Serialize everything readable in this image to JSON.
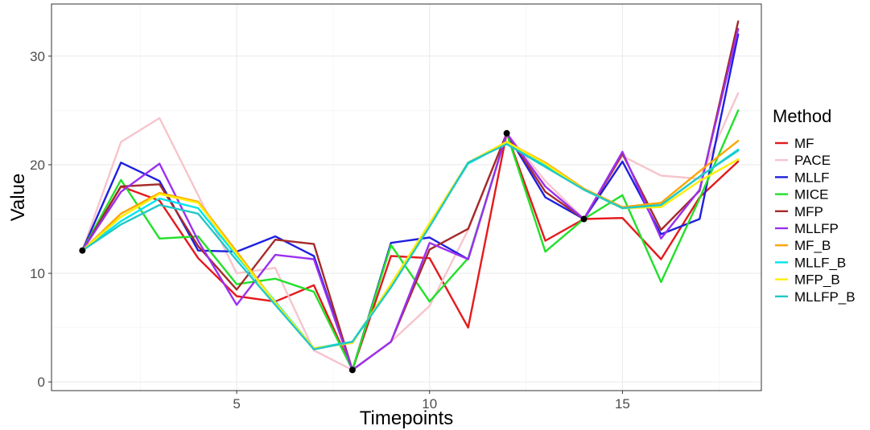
{
  "chart_data": {
    "type": "line",
    "title": "",
    "xlabel": "Timepoints",
    "ylabel": "Value",
    "xlim": [
      0.2,
      18.6
    ],
    "ylim": [
      -0.8,
      34.8
    ],
    "x_ticks": [
      5,
      10,
      15
    ],
    "y_ticks": [
      0,
      10,
      20,
      30
    ],
    "grid": true,
    "legend": {
      "title": "Method",
      "position": "right"
    },
    "x": [
      1,
      2,
      3,
      4,
      5,
      6,
      7,
      8,
      9,
      10,
      11,
      12,
      13,
      14,
      15,
      16,
      17,
      18
    ],
    "series": [
      {
        "name": "MF",
        "color": "#e41a1c",
        "values": [
          12.1,
          18.0,
          16.7,
          11.4,
          7.9,
          7.4,
          8.9,
          1.1,
          11.6,
          11.4,
          5.0,
          22.9,
          13.0,
          15.0,
          15.1,
          11.3,
          17.0,
          20.3
        ]
      },
      {
        "name": "PACE",
        "color": "#f7c4cc",
        "values": [
          12.1,
          22.1,
          24.3,
          17.2,
          10.0,
          10.5,
          2.9,
          1.1,
          3.7,
          7.0,
          14.0,
          22.9,
          18.5,
          15.0,
          20.8,
          19.0,
          18.7,
          26.6
        ]
      },
      {
        "name": "MLLF",
        "color": "#1f1fe0",
        "values": [
          12.1,
          20.2,
          18.5,
          12.1,
          12.0,
          13.4,
          11.6,
          1.1,
          12.8,
          13.3,
          11.3,
          22.9,
          17.0,
          15.0,
          20.3,
          13.6,
          15.0,
          32.0
        ]
      },
      {
        "name": "MICE",
        "color": "#22e02a",
        "values": [
          12.1,
          18.6,
          13.2,
          13.4,
          9.0,
          9.5,
          8.3,
          1.1,
          12.6,
          7.4,
          11.4,
          22.9,
          12.0,
          15.0,
          17.2,
          9.2,
          16.9,
          25.0
        ]
      },
      {
        "name": "MFP",
        "color": "#a52a2a",
        "values": [
          12.1,
          18.0,
          18.2,
          12.5,
          8.5,
          13.1,
          12.7,
          1.1,
          3.7,
          12.2,
          14.1,
          22.9,
          17.5,
          15.0,
          21.0,
          14.0,
          17.6,
          33.2
        ]
      },
      {
        "name": "MLLFP",
        "color": "#9b30f0",
        "values": [
          12.1,
          17.5,
          20.1,
          13.0,
          7.1,
          11.7,
          11.3,
          1.1,
          3.7,
          12.8,
          11.3,
          22.9,
          18.0,
          15.0,
          21.2,
          13.2,
          17.7,
          32.5
        ]
      },
      {
        "name": "MF_B",
        "color": "#ffa500",
        "values": [
          12.1,
          15.5,
          17.4,
          16.6,
          12.0,
          7.3,
          3.1,
          3.6,
          9.0,
          14.6,
          20.2,
          22.1,
          20.2,
          17.8,
          16.1,
          16.5,
          19.4,
          22.2
        ]
      },
      {
        "name": "MLLF_B",
        "color": "#00e5ee",
        "values": [
          12.1,
          14.8,
          16.9,
          16.0,
          11.6,
          7.4,
          3.1,
          3.7,
          8.9,
          14.5,
          20.1,
          22.0,
          19.9,
          17.7,
          16.0,
          16.3,
          18.9,
          21.4
        ]
      },
      {
        "name": "MFP_B",
        "color": "#ffee00",
        "values": [
          12.1,
          15.2,
          17.3,
          16.5,
          11.8,
          7.3,
          3.1,
          3.6,
          9.0,
          14.6,
          20.2,
          22.1,
          20.1,
          17.7,
          16.0,
          16.1,
          18.5,
          20.5
        ]
      },
      {
        "name": "MLLFP_B",
        "color": "#20c8c8",
        "values": [
          12.1,
          14.5,
          16.3,
          15.5,
          11.2,
          7.1,
          3.0,
          3.7,
          8.7,
          14.3,
          20.2,
          21.9,
          19.8,
          17.7,
          16.0,
          16.3,
          18.9,
          21.3
        ]
      }
    ],
    "points": {
      "color": "#000000",
      "x": [
        1,
        8,
        12,
        14
      ],
      "y": [
        12.1,
        1.1,
        22.9,
        15.0
      ]
    }
  }
}
